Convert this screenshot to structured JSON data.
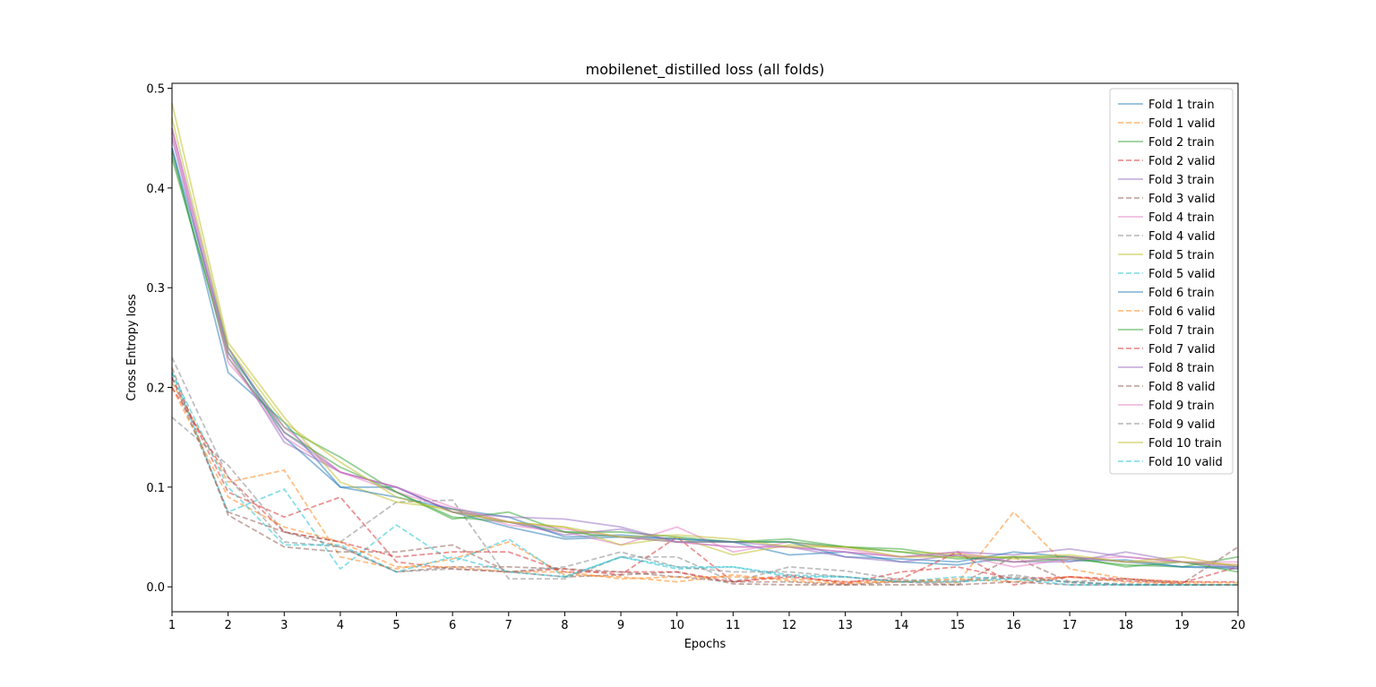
{
  "chart_data": {
    "type": "line",
    "title": "mobilenet_distilled loss (all folds)",
    "xlabel": "Epochs",
    "ylabel": "Cross Entropy loss",
    "xlim": [
      1,
      20
    ],
    "ylim": [
      -0.025,
      0.505
    ],
    "xticks": [
      1,
      2,
      3,
      4,
      5,
      6,
      7,
      8,
      9,
      10,
      11,
      12,
      13,
      14,
      15,
      16,
      17,
      18,
      19,
      20
    ],
    "yticks": [
      0.0,
      0.1,
      0.2,
      0.3,
      0.4,
      0.5
    ],
    "ytick_labels": [
      "0.0",
      "0.1",
      "0.2",
      "0.3",
      "0.4",
      "0.5"
    ],
    "grid": false,
    "legend_position": "top-right",
    "x": [
      1,
      2,
      3,
      4,
      5,
      6,
      7,
      8,
      9,
      10,
      11,
      12,
      13,
      14,
      15,
      16,
      17,
      18,
      19,
      20
    ],
    "series": [
      {
        "name": "Fold 1 train",
        "color": "#1f77b4",
        "style": "solid",
        "values": [
          0.44,
          0.215,
          0.165,
          0.1,
          0.1,
          0.075,
          0.06,
          0.048,
          0.05,
          0.048,
          0.045,
          0.032,
          0.035,
          0.025,
          0.022,
          0.03,
          0.026,
          0.027,
          0.02,
          0.018
        ]
      },
      {
        "name": "Fold 1 valid",
        "color": "#ff7f0e",
        "style": "dashed",
        "values": [
          0.205,
          0.105,
          0.117,
          0.03,
          0.018,
          0.028,
          0.045,
          0.012,
          0.01,
          0.005,
          0.012,
          0.006,
          0.003,
          0.006,
          0.004,
          0.075,
          0.018,
          0.008,
          0.005,
          0.004
        ]
      },
      {
        "name": "Fold 2 train",
        "color": "#2ca02c",
        "style": "solid",
        "values": [
          0.43,
          0.235,
          0.16,
          0.13,
          0.095,
          0.07,
          0.065,
          0.055,
          0.055,
          0.05,
          0.045,
          0.048,
          0.04,
          0.038,
          0.03,
          0.025,
          0.028,
          0.022,
          0.02,
          0.03
        ]
      },
      {
        "name": "Fold 2 valid",
        "color": "#d62728",
        "style": "dashed",
        "values": [
          0.21,
          0.095,
          0.07,
          0.09,
          0.025,
          0.018,
          0.015,
          0.018,
          0.012,
          0.05,
          0.005,
          0.012,
          0.003,
          0.015,
          0.02,
          0.008,
          0.01,
          0.006,
          0.004,
          0.02
        ]
      },
      {
        "name": "Fold 3 train",
        "color": "#9467bd",
        "style": "solid",
        "values": [
          0.45,
          0.235,
          0.145,
          0.115,
          0.1,
          0.075,
          0.065,
          0.052,
          0.058,
          0.045,
          0.04,
          0.04,
          0.035,
          0.03,
          0.035,
          0.032,
          0.038,
          0.03,
          0.025,
          0.018
        ]
      },
      {
        "name": "Fold 3 valid",
        "color": "#8c564b",
        "style": "dashed",
        "values": [
          0.22,
          0.072,
          0.04,
          0.035,
          0.035,
          0.042,
          0.015,
          0.01,
          0.012,
          0.015,
          0.003,
          0.002,
          0.002,
          0.005,
          0.002,
          0.03,
          0.005,
          0.008,
          0.003,
          0.04
        ]
      },
      {
        "name": "Fold 4 train",
        "color": "#e377c2",
        "style": "solid",
        "values": [
          0.455,
          0.225,
          0.16,
          0.115,
          0.095,
          0.078,
          0.062,
          0.055,
          0.042,
          0.06,
          0.035,
          0.045,
          0.038,
          0.03,
          0.032,
          0.02,
          0.028,
          0.03,
          0.025,
          0.022
        ]
      },
      {
        "name": "Fold 4 valid",
        "color": "#7f7f7f",
        "style": "dashed",
        "values": [
          0.17,
          0.122,
          0.055,
          0.045,
          0.085,
          0.087,
          0.008,
          0.008,
          0.03,
          0.03,
          0.005,
          0.02,
          0.016,
          0.007,
          0.006,
          0.012,
          0.004,
          0.003,
          0.002,
          0.002
        ]
      },
      {
        "name": "Fold 5 train",
        "color": "#bcbd22",
        "style": "solid",
        "values": [
          0.485,
          0.245,
          0.17,
          0.105,
          0.085,
          0.078,
          0.065,
          0.06,
          0.042,
          0.05,
          0.032,
          0.042,
          0.04,
          0.035,
          0.033,
          0.028,
          0.03,
          0.025,
          0.03,
          0.02
        ]
      },
      {
        "name": "Fold 5 valid",
        "color": "#17becf",
        "style": "dashed",
        "values": [
          0.215,
          0.075,
          0.098,
          0.018,
          0.062,
          0.025,
          0.048,
          0.01,
          0.03,
          0.018,
          0.02,
          0.01,
          0.01,
          0.005,
          0.01,
          0.008,
          0.005,
          0.002,
          0.002,
          0.002
        ]
      },
      {
        "name": "Fold 6 train",
        "color": "#1f77b4",
        "style": "solid",
        "values": [
          0.44,
          0.24,
          0.15,
          0.1,
          0.09,
          0.078,
          0.07,
          0.05,
          0.052,
          0.048,
          0.045,
          0.045,
          0.03,
          0.028,
          0.025,
          0.035,
          0.03,
          0.025,
          0.02,
          0.02
        ]
      },
      {
        "name": "Fold 6 valid",
        "color": "#ff7f0e",
        "style": "dashed",
        "values": [
          0.2,
          0.09,
          0.06,
          0.045,
          0.02,
          0.02,
          0.015,
          0.015,
          0.008,
          0.01,
          0.01,
          0.008,
          0.005,
          0.005,
          0.008,
          0.005,
          0.01,
          0.005,
          0.003,
          0.002
        ]
      },
      {
        "name": "Fold 7 train",
        "color": "#2ca02c",
        "style": "solid",
        "values": [
          0.435,
          0.23,
          0.155,
          0.12,
          0.095,
          0.068,
          0.075,
          0.055,
          0.05,
          0.045,
          0.045,
          0.045,
          0.04,
          0.035,
          0.028,
          0.03,
          0.03,
          0.02,
          0.025,
          0.015
        ]
      },
      {
        "name": "Fold 7 valid",
        "color": "#d62728",
        "style": "dashed",
        "values": [
          0.2,
          0.11,
          0.055,
          0.045,
          0.03,
          0.035,
          0.035,
          0.015,
          0.015,
          0.015,
          0.005,
          0.01,
          0.005,
          0.008,
          0.035,
          0.002,
          0.01,
          0.008,
          0.005,
          0.005
        ]
      },
      {
        "name": "Fold 8 train",
        "color": "#9467bd",
        "style": "solid",
        "values": [
          0.46,
          0.24,
          0.155,
          0.115,
          0.1,
          0.075,
          0.07,
          0.068,
          0.06,
          0.045,
          0.045,
          0.04,
          0.03,
          0.025,
          0.032,
          0.025,
          0.025,
          0.035,
          0.025,
          0.02
        ]
      },
      {
        "name": "Fold 8 valid",
        "color": "#8c564b",
        "style": "dashed",
        "values": [
          0.21,
          0.075,
          0.055,
          0.04,
          0.015,
          0.02,
          0.02,
          0.018,
          0.015,
          0.01,
          0.005,
          0.005,
          0.002,
          0.002,
          0.002,
          0.005,
          0.002,
          0.002,
          0.002,
          0.002
        ]
      },
      {
        "name": "Fold 9 train",
        "color": "#e377c2",
        "style": "solid",
        "values": [
          0.46,
          0.23,
          0.15,
          0.115,
          0.1,
          0.08,
          0.065,
          0.058,
          0.05,
          0.045,
          0.04,
          0.04,
          0.035,
          0.03,
          0.035,
          0.025,
          0.03,
          0.025,
          0.025,
          0.025
        ]
      },
      {
        "name": "Fold 9 valid",
        "color": "#7f7f7f",
        "style": "dashed",
        "values": [
          0.23,
          0.11,
          0.045,
          0.04,
          0.015,
          0.018,
          0.015,
          0.02,
          0.035,
          0.02,
          0.015,
          0.015,
          0.01,
          0.005,
          0.005,
          0.01,
          0.005,
          0.002,
          0.002,
          0.002
        ]
      },
      {
        "name": "Fold 10 train",
        "color": "#bcbd22",
        "style": "solid",
        "values": [
          0.47,
          0.24,
          0.165,
          0.125,
          0.09,
          0.075,
          0.065,
          0.06,
          0.05,
          0.052,
          0.048,
          0.04,
          0.04,
          0.03,
          0.03,
          0.03,
          0.032,
          0.025,
          0.025,
          0.022
        ]
      },
      {
        "name": "Fold 10 valid",
        "color": "#17becf",
        "style": "dashed",
        "values": [
          0.215,
          0.1,
          0.042,
          0.042,
          0.015,
          0.03,
          0.015,
          0.01,
          0.03,
          0.02,
          0.02,
          0.012,
          0.01,
          0.005,
          0.005,
          0.008,
          0.002,
          0.002,
          0.002,
          0.002
        ]
      }
    ]
  }
}
